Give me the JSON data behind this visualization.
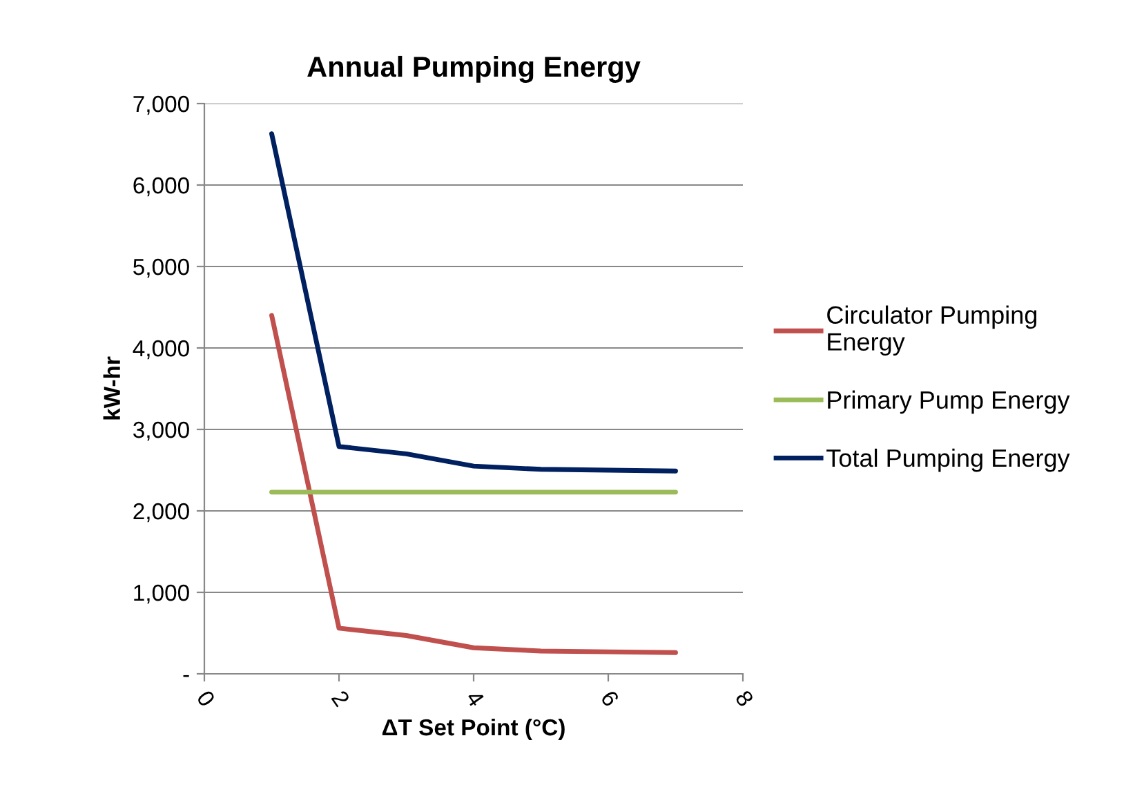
{
  "chart_data": {
    "type": "line",
    "title": "Annual Pumping Energy",
    "xlabel": "ΔT Set Point (°C)",
    "ylabel": "kW-hr",
    "x": [
      1,
      2,
      3,
      4,
      5,
      6,
      7
    ],
    "series": [
      {
        "name": "Circulator Pumping Energy",
        "color": "#c0504d",
        "values": [
          4400,
          560,
          470,
          320,
          280,
          270,
          260
        ]
      },
      {
        "name": "Primary Pump Energy",
        "color": "#9bbb59",
        "values": [
          2230,
          2230,
          2230,
          2230,
          2230,
          2230,
          2230
        ]
      },
      {
        "name": "Total Pumping Energy",
        "color": "#002060",
        "values": [
          6630,
          2790,
          2700,
          2550,
          2510,
          2500,
          2490
        ]
      }
    ],
    "xlim": [
      0,
      8
    ],
    "xticks": [
      0,
      2,
      4,
      6,
      8
    ],
    "ylim": [
      0,
      7000
    ],
    "yticks": [
      {
        "value": 0,
        "label": "-"
      },
      {
        "value": 1000,
        "label": "1,000"
      },
      {
        "value": 2000,
        "label": "2,000"
      },
      {
        "value": 3000,
        "label": "3,000"
      },
      {
        "value": 4000,
        "label": "4,000"
      },
      {
        "value": 5000,
        "label": "5,000"
      },
      {
        "value": 6000,
        "label": "6,000"
      },
      {
        "value": 7000,
        "label": "7,000"
      }
    ],
    "grid": "y",
    "legend": "right",
    "marker": "none",
    "line_style": "solid"
  }
}
